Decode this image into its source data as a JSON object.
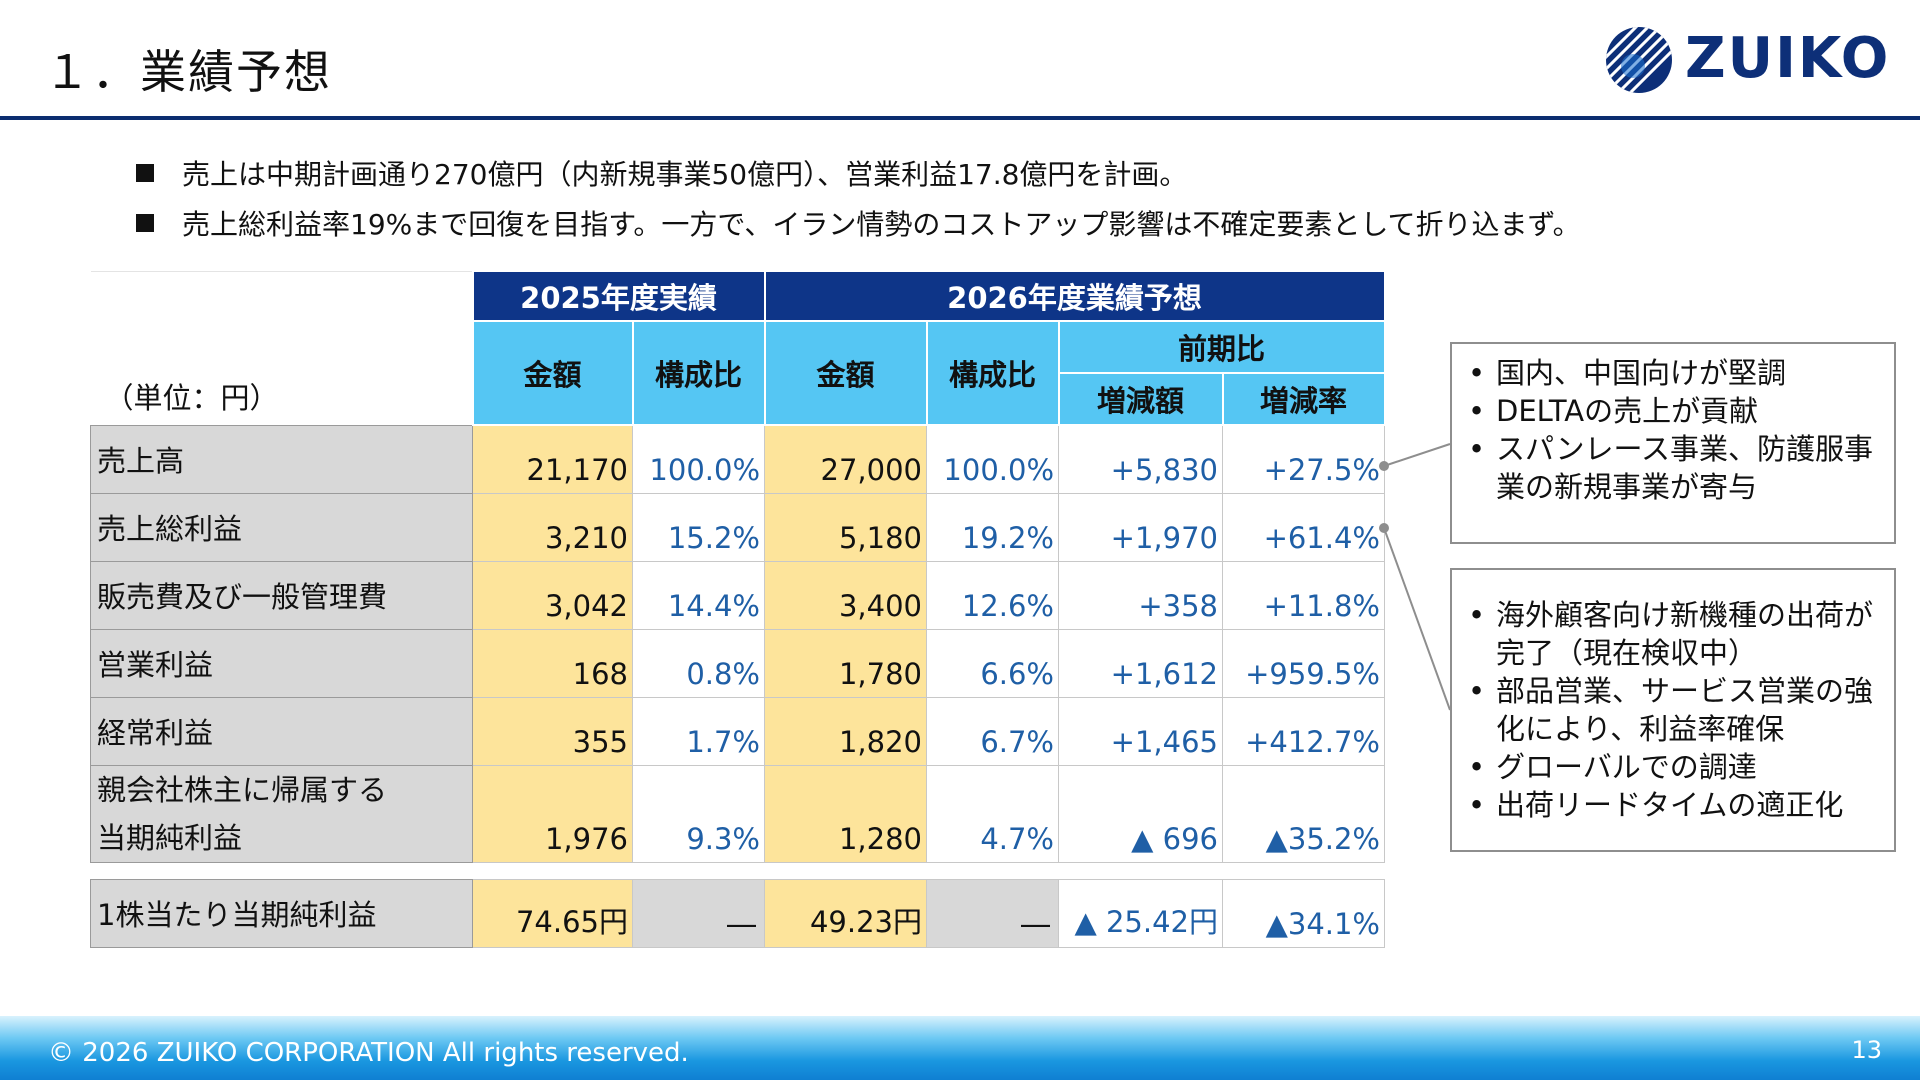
{
  "slide": {
    "title": "１．業績予想",
    "logo_text": "ZUIKO",
    "page_number": "13",
    "copyright": "© 2026 ZUIKO CORPORATION All rights reserved."
  },
  "bullets": [
    "売上は中期計画通り270億円（内新規事業50億円）、営業利益17.8億円を計画。",
    "売上総利益率19%まで回復を目指す。一方で、イラン情勢のコストアップ影響は不確定要素として折り込まず。"
  ],
  "table": {
    "unit": "（単位：円）",
    "group_2025": "2025年度実績",
    "group_2026": "2026年度業績予想",
    "col_amount": "金額",
    "col_ratio": "構成比",
    "col_yoy": "前期比",
    "col_change": "増減額",
    "col_change_rate": "増減率",
    "rows": [
      {
        "label": "売上高",
        "a25": "21,170",
        "r25": "100.0%",
        "a26": "27,000",
        "r26": "100.0%",
        "chg": "+5,830",
        "rate": "+27.5%"
      },
      {
        "label": "売上総利益",
        "a25": "3,210",
        "r25": "15.2%",
        "a26": "5,180",
        "r26": "19.2%",
        "chg": "+1,970",
        "rate": "+61.4%"
      },
      {
        "label": "販売費及び一般管理費",
        "a25": "3,042",
        "r25": "14.4%",
        "a26": "3,400",
        "r26": "12.6%",
        "chg": "+358",
        "rate": "+11.8%"
      },
      {
        "label": "営業利益",
        "a25": "168",
        "r25": "0.8%",
        "a26": "1,780",
        "r26": "6.6%",
        "chg": "+1,612",
        "rate": "+959.5%"
      },
      {
        "label": "経常利益",
        "a25": "355",
        "r25": "1.7%",
        "a26": "1,820",
        "r26": "6.7%",
        "chg": "+1,465",
        "rate": "+412.7%"
      }
    ],
    "net_income": {
      "label_line1": "親会社株主に帰属する",
      "label_line2": "当期純利益",
      "a25": "1,976",
      "r25": "9.3%",
      "a26": "1,280",
      "r26": "4.7%",
      "chg": "▲ 696",
      "rate": "▲35.2%"
    },
    "eps": {
      "label": "1株当たり当期純利益",
      "a25": "74.65円",
      "r25": "―",
      "a26": "49.23円",
      "r26": "―",
      "chg": "▲ 25.42円",
      "rate": "▲34.1%"
    }
  },
  "notes": {
    "box1": [
      "国内、中国向けが堅調",
      "DELTAの売上が貢献",
      "スパンレース事業、防護服事業の新規事業が寄与"
    ],
    "box2": [
      "海外顧客向け新機種の出荷が完了（現在検収中）",
      "部品営業、サービス営業の強化により、利益率確保",
      "グローバルでの調達",
      "出荷リードタイムの適正化"
    ]
  },
  "colors": {
    "navy_header": "#0e3588",
    "sky_header": "#55c6f3",
    "amount_fill": "#fde49b",
    "label_fill": "#d8d8d8",
    "ratio_text": "#1f5fa6",
    "title_rule": "#0b2d6f"
  }
}
